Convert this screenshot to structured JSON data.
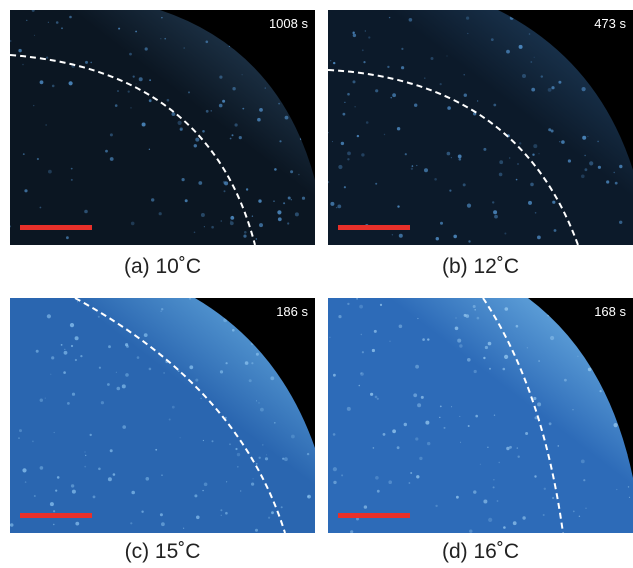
{
  "panels": [
    {
      "time": "1008 s",
      "caption": "(a) 10˚C"
    },
    {
      "time": "473 s",
      "caption": "(b) 12˚C"
    },
    {
      "time": "186 s",
      "caption": "(c) 15˚C"
    },
    {
      "time": "168 s",
      "caption": "(d) 16˚C"
    }
  ]
}
